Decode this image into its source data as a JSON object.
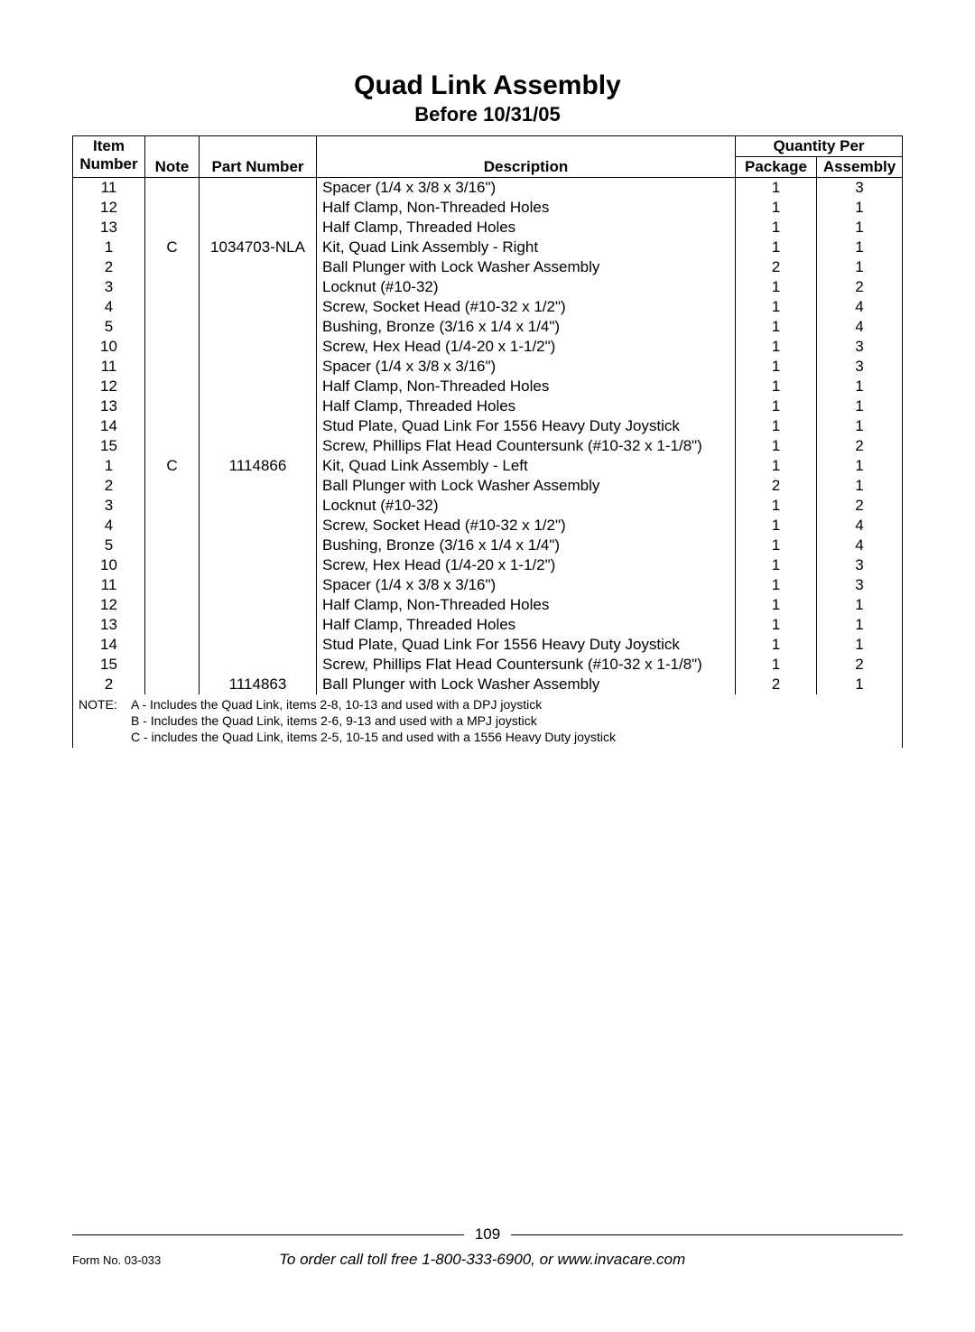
{
  "page": {
    "title": "Quad Link Assembly",
    "subtitle": "Before 10/31/05",
    "page_number": "109",
    "form_no": "Form No. 03-033",
    "order_line": "To order call toll free 1-800-333-6900, or www.invacare.com"
  },
  "table": {
    "header": {
      "item_top": "Item",
      "item_bottom": "Number",
      "note": "Note",
      "part_number": "Part Number",
      "description": "Description",
      "qty_top": "Quantity Per",
      "package": "Package",
      "assembly": "Assembly"
    },
    "rows": [
      {
        "item": "11",
        "note": "",
        "part": "",
        "desc": "Spacer (1/4 x 3/8 x 3/16\")",
        "pkg": "1",
        "asm": "3"
      },
      {
        "item": "12",
        "note": "",
        "part": "",
        "desc": "Half Clamp, Non-Threaded Holes",
        "pkg": "1",
        "asm": "1"
      },
      {
        "item": "13",
        "note": "",
        "part": "",
        "desc": "Half Clamp, Threaded Holes",
        "pkg": "1",
        "asm": "1"
      },
      {
        "item": "1",
        "note": "C",
        "part": "1034703-NLA",
        "desc": "Kit, Quad Link Assembly - Right",
        "pkg": "1",
        "asm": "1"
      },
      {
        "item": "2",
        "note": "",
        "part": "",
        "desc": "Ball Plunger with Lock Washer Assembly",
        "pkg": "2",
        "asm": "1"
      },
      {
        "item": "3",
        "note": "",
        "part": "",
        "desc": "Locknut (#10-32)",
        "pkg": "1",
        "asm": "2"
      },
      {
        "item": "4",
        "note": "",
        "part": "",
        "desc": "Screw, Socket Head (#10-32 x 1/2\")",
        "pkg": "1",
        "asm": "4"
      },
      {
        "item": "5",
        "note": "",
        "part": "",
        "desc": "Bushing, Bronze (3/16 x 1/4 x 1/4\")",
        "pkg": "1",
        "asm": "4"
      },
      {
        "item": "10",
        "note": "",
        "part": "",
        "desc": "Screw, Hex Head (1/4-20 x 1-1/2\")",
        "pkg": "1",
        "asm": "3"
      },
      {
        "item": "11",
        "note": "",
        "part": "",
        "desc": "Spacer (1/4 x 3/8 x 3/16\")",
        "pkg": "1",
        "asm": "3"
      },
      {
        "item": "12",
        "note": "",
        "part": "",
        "desc": "Half Clamp, Non-Threaded Holes",
        "pkg": "1",
        "asm": "1"
      },
      {
        "item": "13",
        "note": "",
        "part": "",
        "desc": "Half Clamp, Threaded Holes",
        "pkg": "1",
        "asm": "1"
      },
      {
        "item": "14",
        "note": "",
        "part": "",
        "desc": "Stud Plate, Quad Link For 1556 Heavy Duty Joystick",
        "pkg": "1",
        "asm": "1"
      },
      {
        "item": "15",
        "note": "",
        "part": "",
        "desc": "Screw, Phillips Flat Head Countersunk (#10-32 x 1-1/8\")",
        "pkg": "1",
        "asm": "2"
      },
      {
        "item": "1",
        "note": "C",
        "part": "1114866",
        "desc": "Kit, Quad Link Assembly - Left",
        "pkg": "1",
        "asm": "1"
      },
      {
        "item": "2",
        "note": "",
        "part": "",
        "desc": "Ball Plunger with Lock Washer Assembly",
        "pkg": "2",
        "asm": "1"
      },
      {
        "item": "3",
        "note": "",
        "part": "",
        "desc": "Locknut (#10-32)",
        "pkg": "1",
        "asm": "2"
      },
      {
        "item": "4",
        "note": "",
        "part": "",
        "desc": "Screw, Socket Head (#10-32 x 1/2\")",
        "pkg": "1",
        "asm": "4"
      },
      {
        "item": "5",
        "note": "",
        "part": "",
        "desc": "Bushing, Bronze (3/16 x 1/4 x 1/4\")",
        "pkg": "1",
        "asm": "4"
      },
      {
        "item": "10",
        "note": "",
        "part": "",
        "desc": "Screw, Hex Head (1/4-20 x 1-1/2\")",
        "pkg": "1",
        "asm": "3"
      },
      {
        "item": "11",
        "note": "",
        "part": "",
        "desc": "Spacer (1/4 x 3/8 x 3/16\")",
        "pkg": "1",
        "asm": "3"
      },
      {
        "item": "12",
        "note": "",
        "part": "",
        "desc": "Half Clamp, Non-Threaded Holes",
        "pkg": "1",
        "asm": "1"
      },
      {
        "item": "13",
        "note": "",
        "part": "",
        "desc": "Half Clamp, Threaded Holes",
        "pkg": "1",
        "asm": "1"
      },
      {
        "item": "14",
        "note": "",
        "part": "",
        "desc": "Stud Plate, Quad Link For 1556 Heavy Duty Joystick",
        "pkg": "1",
        "asm": "1"
      },
      {
        "item": "15",
        "note": "",
        "part": "",
        "desc": "Screw, Phillips Flat Head Countersunk (#10-32 x 1-1/8\")",
        "pkg": "1",
        "asm": "2"
      },
      {
        "item": "2",
        "note": "",
        "part": "1114863",
        "desc": "Ball Plunger with Lock Washer Assembly",
        "pkg": "2",
        "asm": "1"
      }
    ],
    "notes": {
      "label": "NOTE:",
      "lines": [
        "A - Includes the Quad Link, items 2-8, 10-13 and used with a DPJ joystick",
        "B - Includes the Quad Link, items 2-6, 9-13 and used with a MPJ joystick",
        "C - includes the Quad Link, items 2-5, 10-15 and used with a 1556 Heavy Duty joystick"
      ]
    }
  }
}
